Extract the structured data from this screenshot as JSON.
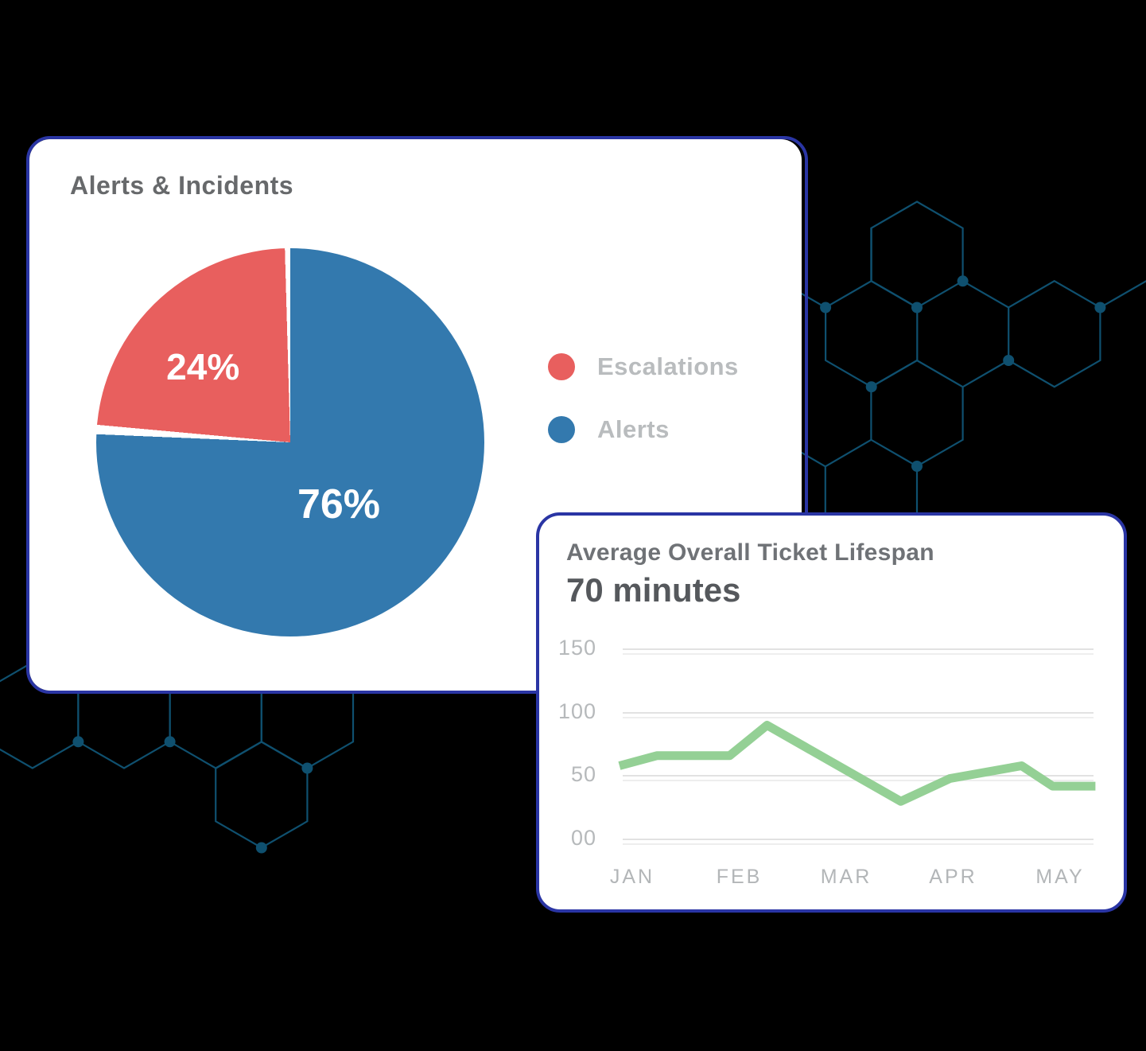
{
  "colors": {
    "card_border": "#2a35a4",
    "hexagon": "#0f506f",
    "pie_escalations": "#e85f5e",
    "pie_alerts": "#3379ae",
    "line_green": "#94d095",
    "gridline_main": "#e2e2e2",
    "gridline_secondary": "#eeeeee"
  },
  "chart_data": [
    {
      "type": "pie",
      "title": "Alerts & Incidents",
      "unit": "percent",
      "slices": [
        {
          "label": "Escalations",
          "value": 24,
          "display": "24%",
          "color": "#e85f5e"
        },
        {
          "label": "Alerts",
          "value": 76,
          "display": "76%",
          "color": "#3379ae"
        }
      ],
      "legend_position": "right",
      "start_angle": "top",
      "direction": "clockwise (Alerts first)"
    },
    {
      "type": "line",
      "title": "Average Overall Ticket Lifespan",
      "subtitle": "70 minutes",
      "x_ticks": [
        "JAN",
        "FEB",
        "MAR",
        "APR",
        "MAY"
      ],
      "y_ticks": [
        "150",
        "100",
        "50",
        "00"
      ],
      "y_tick_values": [
        150,
        100,
        50,
        0
      ],
      "y_range": [
        0,
        150
      ],
      "grid": true,
      "series": [
        {
          "name": "Average ticket lifespan (minutes)",
          "points": [
            [
              -0.12,
              58
            ],
            [
              0.23,
              66
            ],
            [
              0.91,
              66
            ],
            [
              1.26,
              90
            ],
            [
              2.51,
              30
            ],
            [
              2.97,
              48
            ],
            [
              3.64,
              58
            ],
            [
              3.93,
              42
            ],
            [
              4.33,
              42
            ]
          ]
        }
      ]
    }
  ]
}
